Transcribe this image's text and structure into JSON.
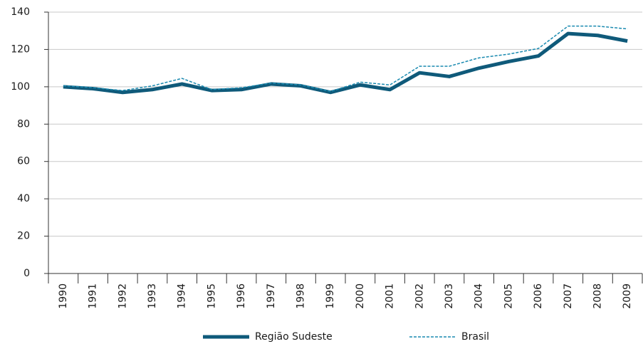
{
  "chart_data": {
    "type": "line",
    "categories": [
      "1990",
      "1991",
      "1992",
      "1993",
      "1994",
      "1995",
      "1996",
      "1997",
      "1998",
      "1999",
      "2000",
      "2001",
      "2002",
      "2003",
      "2004",
      "2005",
      "2006",
      "2007",
      "2008",
      "2009"
    ],
    "series": [
      {
        "name": "Região Sudeste",
        "color": "#0f5a7a",
        "dash": false,
        "values": [
          100,
          99,
          97,
          98.5,
          101.5,
          98,
          98.5,
          101.5,
          100.5,
          97,
          101,
          98.5,
          107.5,
          105.5,
          110,
          113.5,
          116.5,
          128.5,
          127.5,
          124.5
        ]
      },
      {
        "name": "Brasil",
        "color": "#1a8ab0",
        "dash": true,
        "values": [
          100.5,
          99.5,
          98,
          100.5,
          104.5,
          98.5,
          99.5,
          102,
          101,
          97.5,
          102.5,
          101,
          111,
          111,
          115.5,
          117.5,
          120.5,
          132.5,
          132.5,
          131
        ]
      }
    ],
    "ylim": [
      0,
      140
    ],
    "yticks": [
      0,
      20,
      40,
      60,
      80,
      100,
      120,
      140
    ],
    "grid": true,
    "legend": "bottom"
  }
}
